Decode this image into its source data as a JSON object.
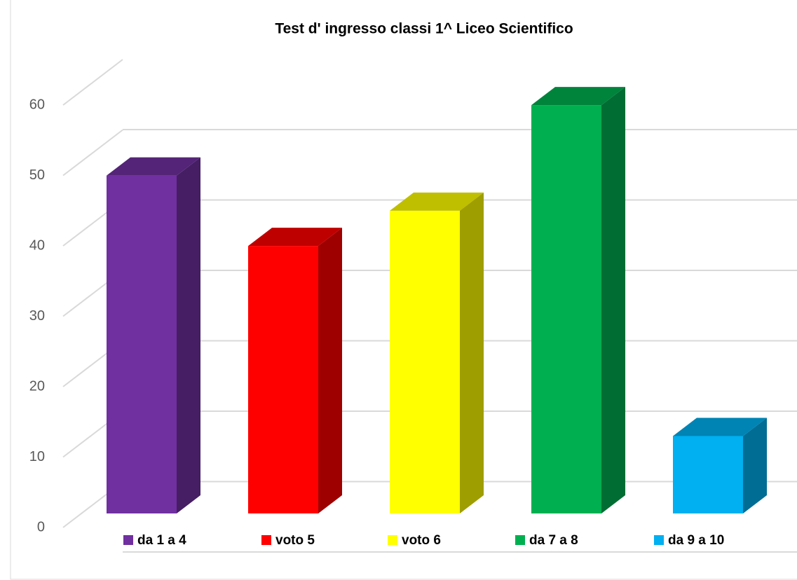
{
  "chart_data": {
    "type": "bar3d",
    "title": "Test d' ingresso classi 1^ Liceo Scientifico",
    "categories": [
      "da 1 a 4",
      "voto 5",
      "voto 6",
      "da 7 a 8",
      "da 9 a 10"
    ],
    "values": [
      48,
      38,
      43,
      58,
      11
    ],
    "colors": [
      "#7030a0",
      "#ff0000",
      "#ffff00",
      "#00b050",
      "#00b0f0"
    ],
    "ylim": [
      0,
      60
    ],
    "yticks": [
      0,
      10,
      20,
      30,
      40,
      50,
      60
    ],
    "grid": true,
    "legend": "bottom"
  }
}
